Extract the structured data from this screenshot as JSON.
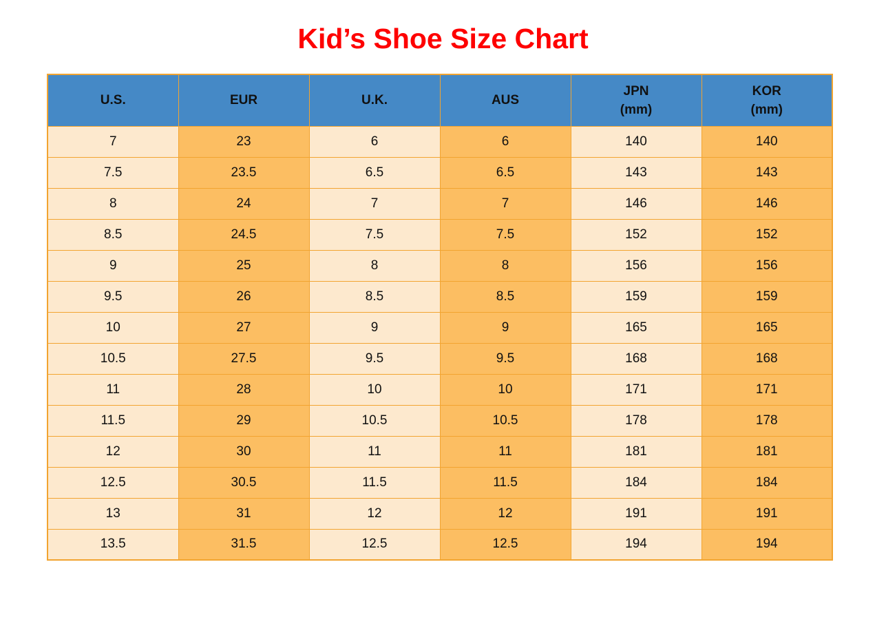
{
  "title": "Kid’s Shoe Size Chart",
  "colors": {
    "title_red": "#FE0000",
    "header_blue": "#4589C6",
    "cell_cream": "#FDE9CE",
    "cell_orange": "#FCBE62",
    "border_orange": "#F2A430",
    "text": "#111111"
  },
  "chart_data": {
    "type": "table",
    "title": "Kid’s Shoe Size Chart",
    "columns": [
      {
        "label": "U.S.",
        "sub": ""
      },
      {
        "label": "EUR",
        "sub": ""
      },
      {
        "label": "U.K.",
        "sub": ""
      },
      {
        "label": "AUS",
        "sub": ""
      },
      {
        "label": "JPN",
        "sub": "(mm)"
      },
      {
        "label": "KOR",
        "sub": "(mm)"
      }
    ],
    "rows": [
      [
        "7",
        "23",
        "6",
        "6",
        "140",
        "140"
      ],
      [
        "7.5",
        "23.5",
        "6.5",
        "6.5",
        "143",
        "143"
      ],
      [
        "8",
        "24",
        "7",
        "7",
        "146",
        "146"
      ],
      [
        "8.5",
        "24.5",
        "7.5",
        "7.5",
        "152",
        "152"
      ],
      [
        "9",
        "25",
        "8",
        "8",
        "156",
        "156"
      ],
      [
        "9.5",
        "26",
        "8.5",
        "8.5",
        "159",
        "159"
      ],
      [
        "10",
        "27",
        "9",
        "9",
        "165",
        "165"
      ],
      [
        "10.5",
        "27.5",
        "9.5",
        "9.5",
        "168",
        "168"
      ],
      [
        "11",
        "28",
        "10",
        "10",
        "171",
        "171"
      ],
      [
        "11.5",
        "29",
        "10.5",
        "10.5",
        "178",
        "178"
      ],
      [
        "12",
        "30",
        "11",
        "11",
        "181",
        "181"
      ],
      [
        "12.5",
        "30.5",
        "11.5",
        "11.5",
        "184",
        "184"
      ],
      [
        "13",
        "31",
        "12",
        "12",
        "191",
        "191"
      ],
      [
        "13.5",
        "31.5",
        "12.5",
        "12.5",
        "194",
        "194"
      ]
    ]
  }
}
